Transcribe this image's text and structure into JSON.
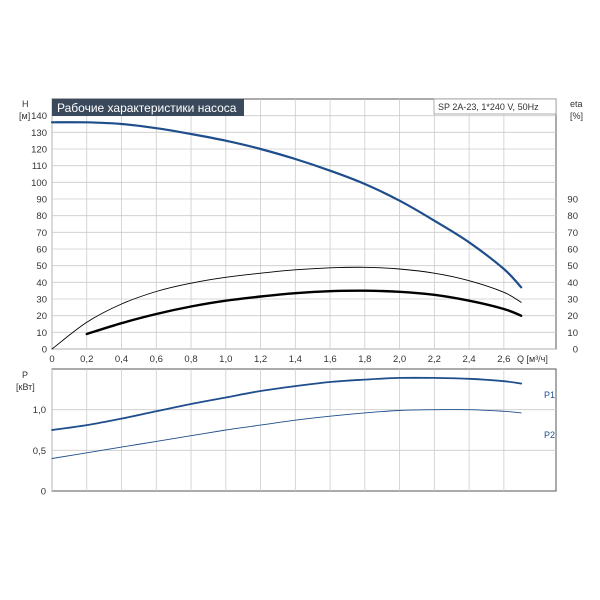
{
  "colors": {
    "curve_blue": "#1f4e8c",
    "curve_black": "#000000",
    "grid": "#cccccc",
    "frame": "#555555",
    "title_bg": "#3a4a5c",
    "title_fg": "#ffffff",
    "p_label": "#1f4e8c"
  },
  "chart_data": [
    {
      "type": "line",
      "title": "Рабочие характеристики насоса",
      "subtitle": "SP 2A-23, 1*240 V, 50Hz",
      "left_axis": {
        "label": "H",
        "unit": "[м]",
        "ylim": [
          0,
          150
        ],
        "ticks": [
          0,
          10,
          20,
          30,
          40,
          50,
          60,
          70,
          80,
          90,
          100,
          110,
          120,
          130,
          140
        ]
      },
      "right_axis": {
        "label": "eta",
        "unit": "[%]",
        "ylim": [
          0,
          150
        ],
        "ticks": [
          0,
          10,
          20,
          30,
          40,
          50,
          60,
          70,
          80,
          90
        ]
      },
      "x_axis": {
        "xlim": [
          0,
          2.9
        ],
        "ticks": [
          0,
          0.2,
          0.4,
          0.6,
          0.8,
          1.0,
          1.2,
          1.4,
          1.6,
          1.8,
          2.0,
          2.2,
          2.4,
          2.6
        ],
        "tick_labels": [
          "0",
          "0,2",
          "0,4",
          "0,6",
          "0,8",
          "1,0",
          "1,2",
          "1,4",
          "1,6",
          "1,8",
          "2,0",
          "2,2",
          "2,4",
          "2,6"
        ],
        "label": "Q [м³/ч]"
      },
      "grid": true,
      "series": [
        {
          "role": "head",
          "color": "curve_blue",
          "width": 2.2,
          "x": [
            0,
            0.2,
            0.4,
            0.6,
            0.8,
            1.0,
            1.2,
            1.4,
            1.6,
            1.8,
            2.0,
            2.2,
            2.4,
            2.6,
            2.7
          ],
          "y": [
            136,
            136,
            135,
            132.5,
            129,
            125,
            120,
            114,
            107,
            99,
            89,
            77,
            64,
            48,
            37
          ]
        },
        {
          "role": "eta_thin",
          "color": "curve_black",
          "width": 0.9,
          "x": [
            0,
            0.2,
            0.4,
            0.6,
            0.8,
            1.0,
            1.2,
            1.4,
            1.6,
            1.8,
            2.0,
            2.2,
            2.4,
            2.6,
            2.7
          ],
          "y": [
            0,
            16,
            27,
            34.5,
            39.5,
            43,
            45.5,
            47.5,
            48.7,
            49,
            48,
            45.5,
            41,
            34,
            28
          ]
        },
        {
          "role": "eta_thick",
          "color": "curve_black",
          "width": 2.4,
          "x": [
            0.2,
            0.4,
            0.6,
            0.8,
            1.0,
            1.2,
            1.4,
            1.6,
            1.8,
            2.0,
            2.2,
            2.4,
            2.6,
            2.7
          ],
          "y": [
            9,
            15.5,
            21,
            25.5,
            29,
            31.5,
            33.5,
            34.7,
            35,
            34.3,
            32.5,
            29,
            24,
            20
          ]
        }
      ]
    },
    {
      "type": "line",
      "y_axis": {
        "label": "P",
        "unit": "[кВт]",
        "ylim": [
          0,
          1.5
        ],
        "ticks": [
          0,
          0.5,
          1.0
        ],
        "tick_labels": [
          "0",
          "0,5",
          "1,0"
        ]
      },
      "x_axis": {
        "xlim": [
          0,
          2.9
        ]
      },
      "grid": true,
      "series": [
        {
          "name": "P1",
          "color": "curve_blue",
          "width": 1.8,
          "x": [
            0,
            0.2,
            0.4,
            0.6,
            0.8,
            1.0,
            1.2,
            1.4,
            1.6,
            1.8,
            2.0,
            2.2,
            2.4,
            2.6,
            2.7
          ],
          "y": [
            0.75,
            0.81,
            0.89,
            0.98,
            1.07,
            1.15,
            1.23,
            1.29,
            1.34,
            1.37,
            1.39,
            1.39,
            1.38,
            1.35,
            1.32
          ]
        },
        {
          "name": "P2",
          "color": "curve_blue",
          "width": 0.9,
          "x": [
            0,
            0.2,
            0.4,
            0.6,
            0.8,
            1.0,
            1.2,
            1.4,
            1.6,
            1.8,
            2.0,
            2.2,
            2.4,
            2.6,
            2.7
          ],
          "y": [
            0.4,
            0.47,
            0.54,
            0.61,
            0.68,
            0.75,
            0.81,
            0.87,
            0.92,
            0.96,
            0.99,
            1.0,
            1.0,
            0.98,
            0.96
          ]
        }
      ]
    }
  ]
}
